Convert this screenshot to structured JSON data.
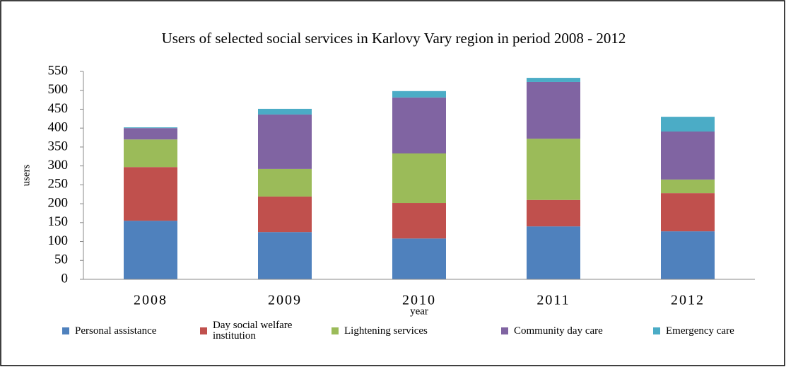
{
  "chart_data": {
    "type": "bar",
    "stacked": true,
    "title": "Users of selected social services in Karlovy Vary region in period 2008 - 2012",
    "x_label": "year",
    "y_label": "users",
    "categories": [
      "2008",
      "2009",
      "2010",
      "2011",
      "2012"
    ],
    "series": [
      {
        "name": "Personal assistance",
        "color": "#4f81bd",
        "values": [
          155,
          125,
          108,
          140,
          127
        ]
      },
      {
        "name": "Day social welfare institution",
        "color": "#c0504d",
        "values": [
          142,
          94,
          94,
          70,
          101
        ]
      },
      {
        "name": "Lightening services",
        "color": "#9bbb59",
        "values": [
          73,
          73,
          131,
          162,
          36
        ]
      },
      {
        "name": "Community day care",
        "color": "#8064a2",
        "values": [
          30,
          144,
          148,
          150,
          127
        ]
      },
      {
        "name": "Emergency care",
        "color": "#4bacc6",
        "values": [
          2,
          15,
          17,
          11,
          39
        ]
      }
    ],
    "ylim": [
      0,
      550
    ],
    "yticks": [
      0,
      50,
      100,
      150,
      200,
      250,
      300,
      350,
      400,
      450,
      500,
      550
    ],
    "grid": false,
    "legend": "bottom"
  }
}
